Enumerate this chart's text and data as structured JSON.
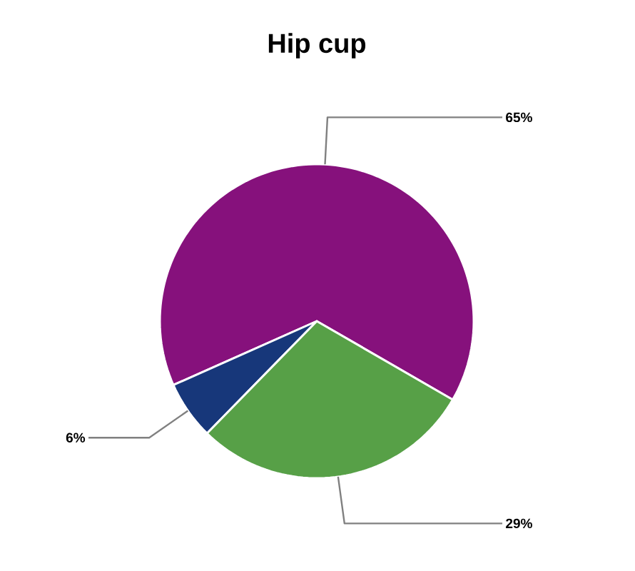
{
  "chart_data": {
    "type": "pie",
    "title": "Hip cup",
    "categories": [
      null,
      null,
      null
    ],
    "values": [
      65,
      6,
      29
    ],
    "value_labels": [
      "65%",
      "6%",
      "29%"
    ],
    "colors": [
      "#86117c",
      "#17377a",
      "#57a047"
    ]
  }
}
